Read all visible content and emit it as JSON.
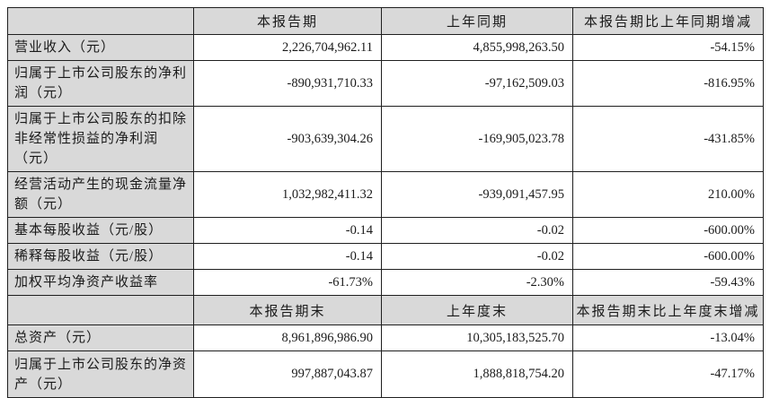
{
  "table": {
    "section1": {
      "headers": [
        "",
        "本报告期",
        "上年同期",
        "本报告期比上年同期增减"
      ],
      "rows": [
        {
          "label": "营业收入（元）",
          "current": "2,226,704,962.11",
          "prior": "4,855,998,263.50",
          "change": "-54.15%"
        },
        {
          "label": "归属于上市公司股东的净利润（元）",
          "current": "-890,931,710.33",
          "prior": "-97,162,509.03",
          "change": "-816.95%"
        },
        {
          "label": "归属于上市公司股东的扣除非经常性损益的净利润（元）",
          "current": "-903,639,304.26",
          "prior": "-169,905,023.78",
          "change": "-431.85%"
        },
        {
          "label": "经营活动产生的现金流量净额（元）",
          "current": "1,032,982,411.32",
          "prior": "-939,091,457.95",
          "change": "210.00%"
        },
        {
          "label": "基本每股收益（元/股）",
          "current": "-0.14",
          "prior": "-0.02",
          "change": "-600.00%"
        },
        {
          "label": "稀释每股收益（元/股）",
          "current": "-0.14",
          "prior": "-0.02",
          "change": "-600.00%"
        },
        {
          "label": "加权平均净资产收益率",
          "current": "-61.73%",
          "prior": "-2.30%",
          "change": "-59.43%"
        }
      ]
    },
    "section2": {
      "headers": [
        "",
        "本报告期末",
        "上年度末",
        "本报告期末比上年度末增减"
      ],
      "rows": [
        {
          "label": "总资产（元）",
          "current": "8,961,896,986.90",
          "prior": "10,305,183,525.70",
          "change": "-13.04%"
        },
        {
          "label": "归属于上市公司股东的净资产（元）",
          "current": "997,887,043.87",
          "prior": "1,888,818,754.20",
          "change": "-47.17%"
        }
      ]
    },
    "colors": {
      "header_bg": "#d9d9d9",
      "cell_bg": "#ffffff",
      "border": "#1f1f1f",
      "text": "#1a1a1a"
    }
  }
}
